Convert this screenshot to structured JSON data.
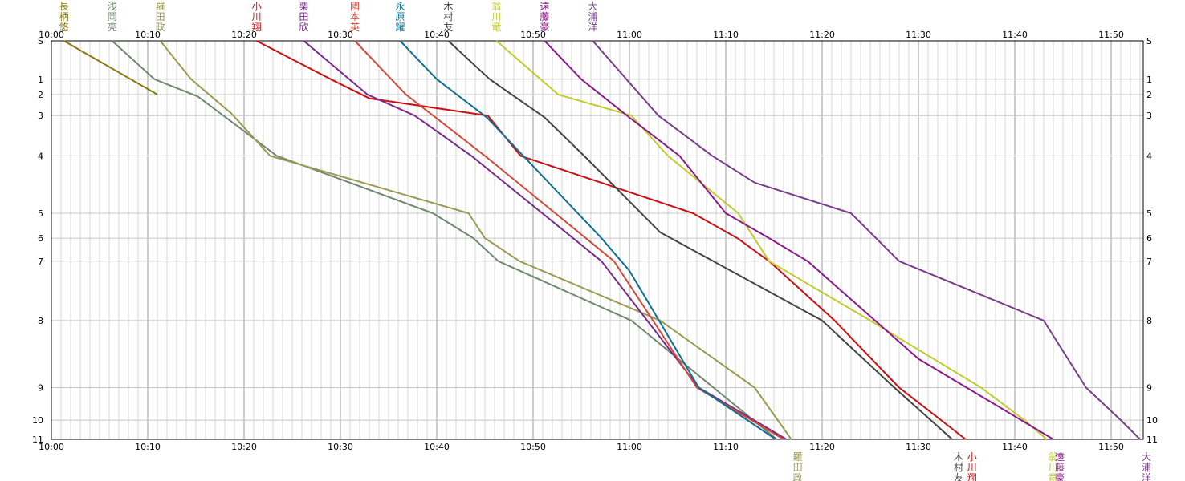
{
  "chart_data": {
    "type": "line",
    "grid": true,
    "x_ticks": [
      "10:00",
      "10:10",
      "10:20",
      "10:30",
      "10:40",
      "10:50",
      "11:00",
      "11:10",
      "11:20",
      "11:30",
      "11:40",
      "11:50"
    ],
    "x_range_minutes": [
      0,
      113
    ],
    "y_ticks": [
      "S",
      "1",
      "2",
      "3",
      "4",
      "5",
      "6",
      "7",
      "8",
      "9",
      "10",
      "11"
    ],
    "y_positions_km": {
      "S": 0,
      "1": 1.0,
      "2": 1.4,
      "3": 1.95,
      "4": 3.0,
      "5": 4.5,
      "6": 5.15,
      "7": 5.75,
      "8": 7.3,
      "9": 9.05,
      "10": 9.9,
      "11": 10.4
    },
    "y_range_km": [
      0,
      10.4
    ],
    "series": [
      {
        "name": "長柄悠",
        "label_chars": [
          "長",
          "柄",
          "悠"
        ],
        "color": "#8B7A10",
        "start": 1.3,
        "top_label": true,
        "bottom_label": false,
        "points": [
          [
            1.3,
            0
          ],
          [
            11.0,
            1.4
          ]
        ]
      },
      {
        "name": "浅岡亮",
        "label_chars": [
          "浅",
          "岡",
          "亮"
        ],
        "color": "#6F8A6F",
        "start": 6.3,
        "top_label": true,
        "bottom_label": false,
        "points": [
          [
            6.3,
            0
          ],
          [
            10.7,
            1.0
          ],
          [
            15.2,
            1.45
          ],
          [
            23.4,
            3.0
          ],
          [
            39.6,
            4.5
          ],
          [
            43.8,
            5.15
          ],
          [
            46.4,
            5.75
          ],
          [
            60.2,
            7.3
          ],
          [
            75.3,
            10.4
          ]
        ]
      },
      {
        "name": "羅田政",
        "label_chars": [
          "羅",
          "田",
          "政"
        ],
        "color": "#9A9A50",
        "start": 11.3,
        "top_label": true,
        "bottom_label": true,
        "points": [
          [
            11.3,
            0
          ],
          [
            14.5,
            1.0
          ],
          [
            18.7,
            1.9
          ],
          [
            22.7,
            3.0
          ],
          [
            43.3,
            4.5
          ],
          [
            45.0,
            5.15
          ],
          [
            48.6,
            5.75
          ],
          [
            63.2,
            7.3
          ],
          [
            73.0,
            9.05
          ],
          [
            76.8,
            10.4
          ]
        ]
      },
      {
        "name": "小川翔",
        "label_chars": [
          "小",
          "川",
          "翔"
        ],
        "color": "#CC1010",
        "start": 21.3,
        "top_label": true,
        "bottom_label": true,
        "points": [
          [
            21.3,
            0
          ],
          [
            29.0,
            1.0
          ],
          [
            33.0,
            1.5
          ],
          [
            45.3,
            1.95
          ],
          [
            48.7,
            3.0
          ],
          [
            66.6,
            4.5
          ],
          [
            71.2,
            5.15
          ],
          [
            74.5,
            5.75
          ],
          [
            81.3,
            7.3
          ],
          [
            88.0,
            9.05
          ],
          [
            94.9,
            10.4
          ]
        ]
      },
      {
        "name": "栗田欣",
        "label_chars": [
          "栗",
          "田",
          "欣"
        ],
        "color": "#7A2A8C",
        "start": 26.2,
        "top_label": true,
        "bottom_label": false,
        "points": [
          [
            26.2,
            0
          ],
          [
            32.8,
            1.4
          ],
          [
            37.7,
            1.95
          ],
          [
            43.6,
            3.0
          ],
          [
            57.1,
            5.75
          ],
          [
            67.2,
            9.05
          ],
          [
            76.3,
            10.4
          ]
        ]
      },
      {
        "name": "國本英",
        "label_chars": [
          "國",
          "本",
          "英"
        ],
        "color": "#D44A3A",
        "start": 31.5,
        "top_label": true,
        "bottom_label": false,
        "points": [
          [
            31.5,
            0
          ],
          [
            36.8,
            1.4
          ],
          [
            45.0,
            3.0
          ],
          [
            58.4,
            5.75
          ],
          [
            67.0,
            9.05
          ],
          [
            76.0,
            10.4
          ]
        ]
      },
      {
        "name": "永原耀",
        "label_chars": [
          "永",
          "原",
          "耀"
        ],
        "color": "#107090",
        "start": 36.2,
        "top_label": true,
        "bottom_label": false,
        "points": [
          [
            36.2,
            0
          ],
          [
            40.0,
            1.0
          ],
          [
            45.2,
            2.0
          ],
          [
            57.1,
            5.15
          ],
          [
            60.0,
            6.0
          ],
          [
            67.2,
            9.05
          ],
          [
            75.2,
            10.4
          ]
        ]
      },
      {
        "name": "木村友",
        "label_chars": [
          "木",
          "村",
          "友"
        ],
        "color": "#454545",
        "start": 41.2,
        "top_label": true,
        "bottom_label": true,
        "points": [
          [
            41.2,
            0
          ],
          [
            45.5,
            1.0
          ],
          [
            51.2,
            2.0
          ],
          [
            55.3,
            3.0
          ],
          [
            63.2,
            5.0
          ],
          [
            68.7,
            5.75
          ],
          [
            80.0,
            7.3
          ],
          [
            87.5,
            9.05
          ],
          [
            93.5,
            10.4
          ]
        ]
      },
      {
        "name": "翁川竜",
        "label_chars": [
          "翁",
          "川",
          "竜"
        ],
        "color": "#C0CC2A",
        "start": 46.2,
        "top_label": true,
        "bottom_label": true,
        "points": [
          [
            46.2,
            0
          ],
          [
            52.6,
            1.4
          ],
          [
            60.2,
            1.95
          ],
          [
            64.0,
            3.0
          ],
          [
            71.3,
            4.5
          ],
          [
            74.5,
            5.75
          ],
          [
            85.0,
            7.3
          ],
          [
            96.5,
            9.05
          ],
          [
            101.0,
            9.9
          ],
          [
            103.3,
            10.4
          ]
        ]
      },
      {
        "name": "遠藤豪",
        "label_chars": [
          "遠",
          "藤",
          "豪"
        ],
        "color": "#8C1A8C",
        "start": 51.2,
        "top_label": true,
        "bottom_label": true,
        "points": [
          [
            51.2,
            0
          ],
          [
            55.0,
            1.0
          ],
          [
            60.0,
            2.0
          ],
          [
            65.2,
            3.0
          ],
          [
            70.0,
            4.5
          ],
          [
            74.5,
            5.15
          ],
          [
            78.5,
            5.75
          ],
          [
            90.0,
            8.3
          ],
          [
            104.0,
            10.4
          ]
        ]
      },
      {
        "name": "大浦洋",
        "label_chars": [
          "大",
          "浦",
          "洋"
        ],
        "color": "#7A3C8C",
        "start": 56.2,
        "top_label": true,
        "bottom_label": true,
        "points": [
          [
            56.2,
            0
          ],
          [
            63.0,
            1.95
          ],
          [
            68.6,
            3.0
          ],
          [
            73.0,
            3.7
          ],
          [
            83.0,
            4.5
          ],
          [
            88.0,
            5.75
          ],
          [
            103.0,
            7.3
          ],
          [
            107.4,
            9.05
          ],
          [
            111.0,
            9.9
          ],
          [
            113.0,
            10.4
          ]
        ]
      }
    ]
  }
}
